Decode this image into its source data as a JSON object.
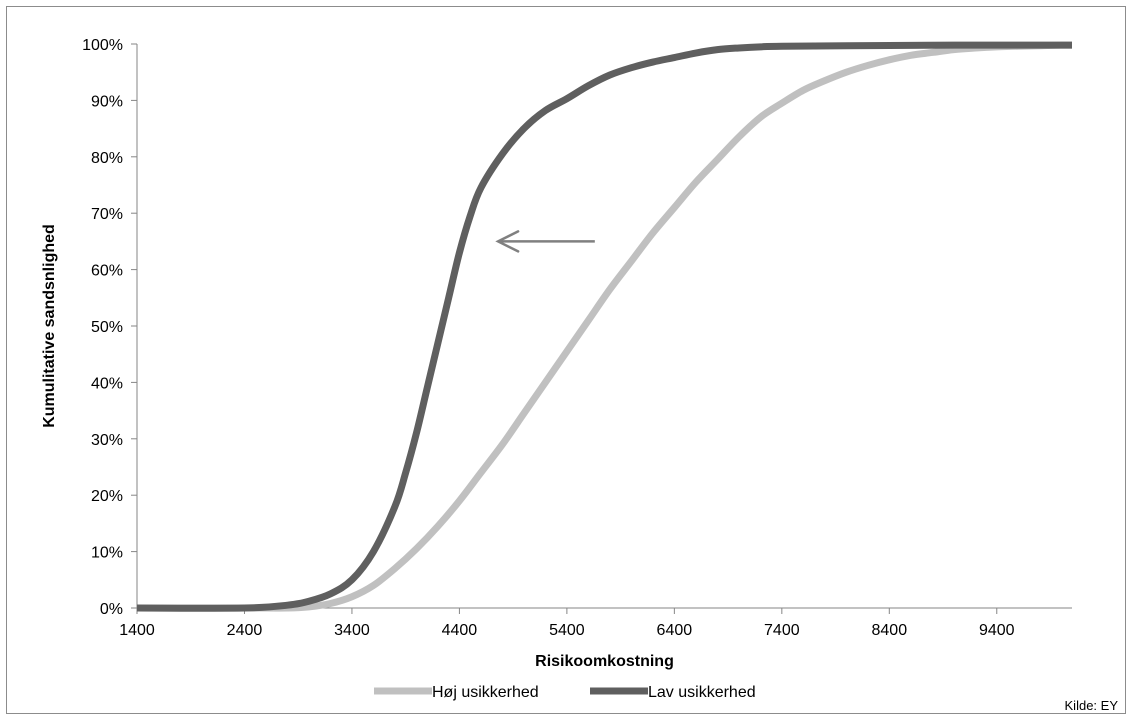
{
  "chart_data": {
    "type": "line",
    "title": "",
    "xlabel": "Risikoomkostning",
    "ylabel": "Kumulitative sandsnlighed",
    "xlim": [
      1400,
      10100
    ],
    "ylim": [
      0,
      1
    ],
    "x_ticks": [
      1400,
      2400,
      3400,
      4400,
      5400,
      6400,
      7400,
      8400,
      9400
    ],
    "x_tick_labels": [
      "1400",
      "2400",
      "3400",
      "4400",
      "5400",
      "6400",
      "7400",
      "8400",
      "9400"
    ],
    "y_ticks": [
      0,
      0.1,
      0.2,
      0.3,
      0.4,
      0.5,
      0.6,
      0.7,
      0.8,
      0.9,
      1.0
    ],
    "y_tick_labels": [
      "0%",
      "10%",
      "20%",
      "30%",
      "40%",
      "50%",
      "60%",
      "70%",
      "80%",
      "90%",
      "100%"
    ],
    "grid": false,
    "legend_position": "bottom",
    "series": [
      {
        "name": "Høj usikkerhed",
        "color": "#c0c0c0",
        "x": [
          1400,
          2400,
          2800,
          3000,
          3200,
          3400,
          3600,
          3800,
          4000,
          4200,
          4400,
          4600,
          4800,
          5000,
          5200,
          5400,
          5600,
          5800,
          6000,
          6200,
          6400,
          6600,
          6800,
          7000,
          7200,
          7400,
          7600,
          7800,
          8000,
          8200,
          8400,
          8600,
          8800,
          9000,
          9200,
          9400,
          9600,
          9800,
          10000,
          10100
        ],
        "y": [
          0,
          0,
          0,
          0.002,
          0.008,
          0.02,
          0.04,
          0.07,
          0.105,
          0.145,
          0.19,
          0.24,
          0.29,
          0.345,
          0.4,
          0.455,
          0.51,
          0.565,
          0.615,
          0.665,
          0.71,
          0.755,
          0.795,
          0.835,
          0.87,
          0.895,
          0.918,
          0.935,
          0.95,
          0.962,
          0.972,
          0.98,
          0.985,
          0.99,
          0.993,
          0.995,
          0.996,
          0.997,
          0.998,
          0.998
        ]
      },
      {
        "name": "Lav usikkerhed",
        "color": "#5f5f5f",
        "x": [
          1400,
          2400,
          2800,
          3000,
          3200,
          3400,
          3600,
          3800,
          3900,
          4000,
          4100,
          4200,
          4300,
          4400,
          4500,
          4600,
          4800,
          5000,
          5200,
          5400,
          5600,
          5800,
          6000,
          6200,
          6400,
          6600,
          6800,
          7000,
          7200,
          7400,
          8000,
          9000,
          10100
        ],
        "y": [
          0,
          0,
          0.005,
          0.012,
          0.025,
          0.05,
          0.1,
          0.18,
          0.24,
          0.31,
          0.39,
          0.47,
          0.55,
          0.63,
          0.695,
          0.745,
          0.805,
          0.85,
          0.882,
          0.903,
          0.926,
          0.945,
          0.958,
          0.968,
          0.976,
          0.984,
          0.99,
          0.993,
          0.995,
          0.996,
          0.997,
          0.998,
          0.998
        ]
      }
    ],
    "annotations": {
      "arrow": {
        "from": [
          5660,
          0.65
        ],
        "to": [
          4760,
          0.65
        ],
        "color": "#808080"
      }
    },
    "source": "Kilde: EY"
  }
}
